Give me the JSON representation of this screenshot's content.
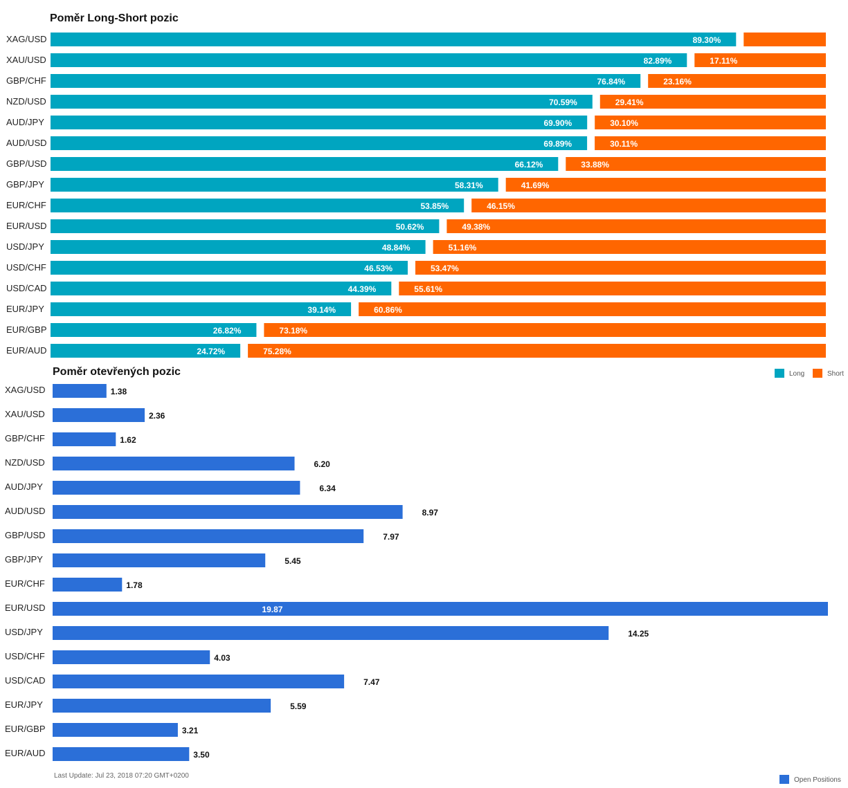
{
  "colors": {
    "long": "#00a5c0",
    "short": "#ff6600",
    "open": "#2b6fd8"
  },
  "chart_data": [
    {
      "type": "bar",
      "orientation": "horizontal",
      "stacked": true,
      "title": "Poměr Long-Short pozic",
      "categories": [
        "XAG/USD",
        "XAU/USD",
        "GBP/CHF",
        "NZD/USD",
        "AUD/JPY",
        "AUD/USD",
        "GBP/USD",
        "GBP/JPY",
        "EUR/CHF",
        "EUR/USD",
        "USD/JPY",
        "USD/CHF",
        "USD/CAD",
        "EUR/JPY",
        "EUR/GBP",
        "EUR/AUD"
      ],
      "series": [
        {
          "name": "Long",
          "values": [
            89.3,
            82.89,
            76.84,
            70.59,
            69.9,
            69.89,
            66.12,
            58.31,
            53.85,
            50.62,
            48.84,
            46.53,
            44.39,
            39.14,
            26.82,
            24.72
          ],
          "labels": [
            "89.30%",
            "82.89%",
            "76.84%",
            "70.59%",
            "69.90%",
            "69.89%",
            "66.12%",
            "58.31%",
            "53.85%",
            "50.62%",
            "48.84%",
            "46.53%",
            "44.39%",
            "39.14%",
            "26.82%",
            "24.72%"
          ]
        },
        {
          "name": "Short",
          "values": [
            10.7,
            17.11,
            23.16,
            29.41,
            30.1,
            30.11,
            33.88,
            41.69,
            46.15,
            49.38,
            51.16,
            53.47,
            55.61,
            60.86,
            73.18,
            75.28
          ],
          "labels": [
            "",
            "17.11%",
            "23.16%",
            "29.41%",
            "30.10%",
            "30.11%",
            "33.88%",
            "41.69%",
            "46.15%",
            "49.38%",
            "51.16%",
            "53.47%",
            "55.61%",
            "60.86%",
            "73.18%",
            "75.28%"
          ]
        }
      ],
      "xlim": [
        0,
        100
      ],
      "legend": "bottom-right"
    },
    {
      "type": "bar",
      "orientation": "horizontal",
      "title": "Poměr otevřených pozic",
      "categories": [
        "XAG/USD",
        "XAU/USD",
        "GBP/CHF",
        "NZD/USD",
        "AUD/JPY",
        "AUD/USD",
        "GBP/USD",
        "GBP/JPY",
        "EUR/CHF",
        "EUR/USD",
        "USD/JPY",
        "USD/CHF",
        "USD/CAD",
        "EUR/JPY",
        "EUR/GBP",
        "EUR/AUD"
      ],
      "series": [
        {
          "name": "Open Positions",
          "values": [
            1.38,
            2.36,
            1.62,
            6.2,
            6.34,
            8.97,
            7.97,
            5.45,
            1.78,
            19.87,
            14.25,
            4.03,
            7.47,
            5.59,
            3.21,
            3.5
          ],
          "labels": [
            "1.38",
            "2.36",
            "1.62",
            "6.20",
            "6.34",
            "8.97",
            "7.97",
            "5.45",
            "1.78",
            "19.87",
            "14.25",
            "4.03",
            "7.47",
            "5.59",
            "3.21",
            "3.50"
          ]
        }
      ],
      "xlim": [
        0,
        19.87
      ],
      "legend": "bottom-right"
    }
  ],
  "footnote": "Last Update: Jul 23, 2018 07:20 GMT+0200"
}
